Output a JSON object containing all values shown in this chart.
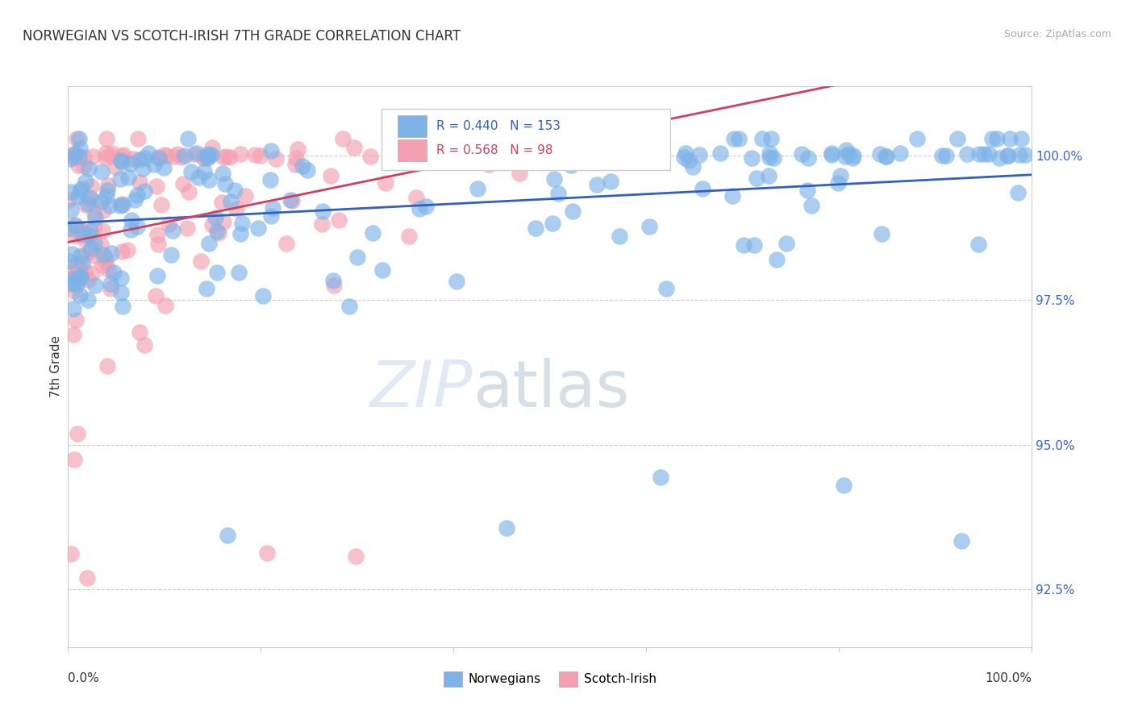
{
  "title": "NORWEGIAN VS SCOTCH-IRISH 7TH GRADE CORRELATION CHART",
  "source": "Source: ZipAtlas.com",
  "ylabel": "7th Grade",
  "yaxis_values": [
    92.5,
    95.0,
    97.5,
    100.0
  ],
  "legend_blue_label": "Norwegians",
  "legend_pink_label": "Scotch-Irish",
  "blue_R": 0.44,
  "blue_N": 153,
  "pink_R": 0.568,
  "pink_N": 98,
  "blue_color": "#7EB3E8",
  "pink_color": "#F4A0B0",
  "blue_line_color": "#3060C0",
  "pink_line_color": "#D04060",
  "watermark_zip": "ZIP",
  "watermark_atlas": "atlas",
  "background_color": "#FFFFFF",
  "xlim": [
    0.0,
    100.0
  ],
  "ylim": [
    91.5,
    101.2
  ],
  "title_fontsize": 12,
  "source_fontsize": 9,
  "seed": 42
}
